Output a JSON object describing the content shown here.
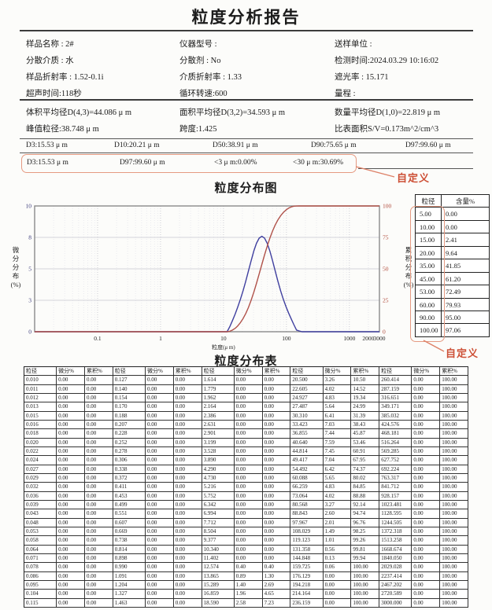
{
  "report": {
    "title": "粒度分析报告",
    "info_rows": [
      [
        "样品名称 : 2#",
        "仪器型号 :",
        "送样单位 :"
      ],
      [
        "分散介质 : 水",
        "分散剂 : No",
        "检测时间:2024.03.29 10:16:02"
      ],
      [
        "样品折射率 : 1.52-0.1i",
        "介质折射率 : 1.33",
        "遮光率 : 15.171"
      ],
      [
        "超声时间:118秒",
        "循环转速:600",
        "量程 :"
      ]
    ],
    "summary_rows": [
      [
        "体积平均径D(4,3)=44.086 μ m",
        "面积平均径D(3,2)=34.593 μ m",
        "数量平均径D(1,0)=22.819 μ m"
      ],
      [
        "峰值粒径:38.748 μ m",
        "跨度:1.425",
        "比表面积S/V=0.173m^2/cm^3"
      ]
    ],
    "d_values": [
      "D3:15.53 μ m",
      "D10:20.21 μ m",
      "D50:38.91 μ m",
      "D90:75.65 μ m",
      "D97:99.60 μ m"
    ],
    "custom_values": [
      "D3:15.53 μ m",
      "D97:99.60 μ m",
      "<3 μ m:0.00%",
      "<30 μ m:30.69%"
    ]
  },
  "annotations": {
    "custom_label": "自定义"
  },
  "colors": {
    "annotation_red": "#cd4f35",
    "box_red": "#e59a82",
    "curve_blue": "#3f3f9f",
    "curve_red": "#b0524a"
  },
  "chart_data": {
    "type": "line",
    "title": "粒度分布图",
    "xlabel": "粒度(μ m)",
    "ylabel_left": "微分分布(%)",
    "ylabel_right": "累积分布(%)",
    "x_scale": "log",
    "xlim": [
      0.01,
      3000
    ],
    "ylim_left": [
      0,
      10
    ],
    "ylim_right": [
      0,
      100
    ],
    "x_ticks": [
      {
        "v": 0.1,
        "label": "0.1"
      },
      {
        "v": 1,
        "label": "1"
      },
      {
        "v": 10,
        "label": "10"
      },
      {
        "v": 100,
        "label": "100"
      },
      {
        "v": 1000,
        "label": "1000"
      },
      {
        "v": 2000,
        "label": "2000"
      },
      {
        "v": 3000,
        "label": "3000"
      }
    ],
    "y_ticks_left": [
      {
        "pos": 0,
        "label": "0"
      },
      {
        "pos": 2.5,
        "label": "3"
      },
      {
        "pos": 5,
        "label": "5"
      },
      {
        "pos": 7.5,
        "label": "8"
      },
      {
        "pos": 10,
        "label": "10"
      }
    ],
    "y_ticks_right": [
      {
        "pos": 0,
        "label": "0"
      },
      {
        "pos": 25,
        "label": "25"
      },
      {
        "pos": 50,
        "label": "50"
      },
      {
        "pos": 75,
        "label": "75"
      },
      {
        "pos": 100,
        "label": "100"
      }
    ],
    "legend_position": "none",
    "grid": true,
    "series": [
      {
        "name": "微分分布",
        "axis": "left",
        "color": "#3f3f9f",
        "points": [
          [
            0.01,
            0
          ],
          [
            1,
            0
          ],
          [
            5,
            0
          ],
          [
            10.34,
            0
          ],
          [
            11.402,
            0
          ],
          [
            12.574,
            0.4
          ],
          [
            13.865,
            0.89
          ],
          [
            15.289,
            1.4
          ],
          [
            16.859,
            1.96
          ],
          [
            18.59,
            2.58
          ],
          [
            20.5,
            3.26
          ],
          [
            22.605,
            4.02
          ],
          [
            24.927,
            4.83
          ],
          [
            27.487,
            5.64
          ],
          [
            30.31,
            6.41
          ],
          [
            33.423,
            7.03
          ],
          [
            36.855,
            7.44
          ],
          [
            40.64,
            7.59
          ],
          [
            44.814,
            7.45
          ],
          [
            49.417,
            7.04
          ],
          [
            54.492,
            6.42
          ],
          [
            60.088,
            5.65
          ],
          [
            66.259,
            4.83
          ],
          [
            73.064,
            4.02
          ],
          [
            80.568,
            3.27
          ],
          [
            88.843,
            2.6
          ],
          [
            97.967,
            2.01
          ],
          [
            108.029,
            1.49
          ],
          [
            119.123,
            1.01
          ],
          [
            131.358,
            0.56
          ],
          [
            144.848,
            0.13
          ],
          [
            159.725,
            0.06
          ],
          [
            176.129,
            0
          ],
          [
            3000,
            0
          ]
        ]
      },
      {
        "name": "累积分布",
        "axis": "right",
        "color": "#b0524a",
        "points": [
          [
            0.01,
            0
          ],
          [
            1,
            0
          ],
          [
            5,
            0
          ],
          [
            10.34,
            0
          ],
          [
            11.402,
            0
          ],
          [
            12.574,
            0.4
          ],
          [
            13.865,
            1.3
          ],
          [
            15.289,
            2.69
          ],
          [
            16.859,
            4.65
          ],
          [
            18.59,
            7.23
          ],
          [
            20.5,
            10.5
          ],
          [
            22.605,
            14.52
          ],
          [
            24.927,
            19.34
          ],
          [
            27.487,
            24.99
          ],
          [
            30.31,
            31.39
          ],
          [
            33.423,
            38.43
          ],
          [
            36.855,
            45.87
          ],
          [
            40.64,
            53.46
          ],
          [
            44.814,
            60.91
          ],
          [
            49.417,
            67.95
          ],
          [
            54.492,
            74.37
          ],
          [
            60.088,
            80.02
          ],
          [
            66.259,
            84.85
          ],
          [
            73.064,
            88.88
          ],
          [
            80.568,
            92.14
          ],
          [
            88.843,
            94.74
          ],
          [
            97.967,
            96.76
          ],
          [
            108.029,
            98.25
          ],
          [
            119.123,
            99.26
          ],
          [
            131.358,
            99.81
          ],
          [
            144.848,
            99.94
          ],
          [
            159.725,
            100
          ],
          [
            176.129,
            100
          ],
          [
            3000,
            100
          ]
        ]
      }
    ]
  },
  "side_table": {
    "headers": [
      "粒径",
      "含量%"
    ],
    "rows": [
      [
        "5.00",
        "0.00"
      ],
      [
        "10.00",
        "0.00"
      ],
      [
        "15.00",
        "2.41"
      ],
      [
        "20.00",
        "9.64"
      ],
      [
        "35.00",
        "41.85"
      ],
      [
        "45.00",
        "61.20"
      ],
      [
        "53.00",
        "72.49"
      ],
      [
        "60.00",
        "79.93"
      ],
      [
        "90.00",
        "95.00"
      ],
      [
        "100.00",
        "97.06"
      ]
    ]
  },
  "dist_table": {
    "title": "粒度分布表",
    "headers": [
      "粒径",
      "微分%",
      "累积%"
    ],
    "groups": [
      {
        "d": [
          "0.010",
          "0.011",
          "0.012",
          "0.013",
          "0.015",
          "0.016",
          "0.018",
          "0.020",
          "0.022",
          "0.024",
          "0.027",
          "0.029",
          "0.032",
          "0.036",
          "0.039",
          "0.043",
          "0.048",
          "0.053",
          "0.058",
          "0.064",
          "0.071",
          "0.078",
          "0.086",
          "0.095",
          "0.104",
          "0.115"
        ],
        "diff": [
          "0.00",
          "0.00",
          "0.00",
          "0.00",
          "0.00",
          "0.00",
          "0.00",
          "0.00",
          "0.00",
          "0.00",
          "0.00",
          "0.00",
          "0.00",
          "0.00",
          "0.00",
          "0.00",
          "0.00",
          "0.00",
          "0.00",
          "0.00",
          "0.00",
          "0.00",
          "0.00",
          "0.00",
          "0.00",
          "0.00"
        ],
        "cum": [
          "0.00",
          "0.00",
          "0.00",
          "0.00",
          "0.00",
          "0.00",
          "0.00",
          "0.00",
          "0.00",
          "0.00",
          "0.00",
          "0.00",
          "0.00",
          "0.00",
          "0.00",
          "0.00",
          "0.00",
          "0.00",
          "0.00",
          "0.00",
          "0.00",
          "0.00",
          "0.00",
          "0.00",
          "0.00",
          "0.00"
        ]
      },
      {
        "d": [
          "0.127",
          "0.140",
          "0.154",
          "0.170",
          "0.188",
          "0.207",
          "0.228",
          "0.252",
          "0.278",
          "0.306",
          "0.338",
          "0.372",
          "0.411",
          "0.453",
          "0.499",
          "0.551",
          "0.607",
          "0.669",
          "0.738",
          "0.814",
          "0.898",
          "0.990",
          "1.091",
          "1.204",
          "1.327",
          "1.463"
        ],
        "diff": [
          "0.00",
          "0.00",
          "0.00",
          "0.00",
          "0.00",
          "0.00",
          "0.00",
          "0.00",
          "0.00",
          "0.00",
          "0.00",
          "0.00",
          "0.00",
          "0.00",
          "0.00",
          "0.00",
          "0.00",
          "0.00",
          "0.00",
          "0.00",
          "0.00",
          "0.00",
          "0.00",
          "0.00",
          "0.00",
          "0.00"
        ],
        "cum": [
          "0.00",
          "0.00",
          "0.00",
          "0.00",
          "0.00",
          "0.00",
          "0.00",
          "0.00",
          "0.00",
          "0.00",
          "0.00",
          "0.00",
          "0.00",
          "0.00",
          "0.00",
          "0.00",
          "0.00",
          "0.00",
          "0.00",
          "0.00",
          "0.00",
          "0.00",
          "0.00",
          "0.00",
          "0.00",
          "0.00"
        ]
      },
      {
        "d": [
          "1.614",
          "1.779",
          "1.962",
          "2.164",
          "2.386",
          "2.631",
          "2.901",
          "3.199",
          "3.528",
          "3.890",
          "4.290",
          "4.730",
          "5.216",
          "5.752",
          "6.342",
          "6.994",
          "7.712",
          "8.504",
          "9.377",
          "10.340",
          "11.402",
          "12.574",
          "13.865",
          "15.289",
          "16.859",
          "18.590"
        ],
        "diff": [
          "0.00",
          "0.00",
          "0.00",
          "0.00",
          "0.00",
          "0.00",
          "0.00",
          "0.00",
          "0.00",
          "0.00",
          "0.00",
          "0.00",
          "0.00",
          "0.00",
          "0.00",
          "0.00",
          "0.00",
          "0.00",
          "0.00",
          "0.00",
          "0.00",
          "0.40",
          "0.89",
          "1.40",
          "1.96",
          "2.58"
        ],
        "cum": [
          "0.00",
          "0.00",
          "0.00",
          "0.00",
          "0.00",
          "0.00",
          "0.00",
          "0.00",
          "0.00",
          "0.00",
          "0.00",
          "0.00",
          "0.00",
          "0.00",
          "0.00",
          "0.00",
          "0.00",
          "0.00",
          "0.00",
          "0.00",
          "0.00",
          "0.40",
          "1.30",
          "2.69",
          "4.65",
          "7.23"
        ]
      },
      {
        "d": [
          "20.500",
          "22.605",
          "24.927",
          "27.487",
          "30.310",
          "33.423",
          "36.855",
          "40.640",
          "44.814",
          "49.417",
          "54.492",
          "60.088",
          "66.259",
          "73.064",
          "80.568",
          "88.843",
          "97.967",
          "108.029",
          "119.123",
          "131.358",
          "144.848",
          "159.725",
          "176.129",
          "194.218",
          "214.164",
          "236.159"
        ],
        "diff": [
          "3.26",
          "4.02",
          "4.83",
          "5.64",
          "6.41",
          "7.03",
          "7.44",
          "7.59",
          "7.45",
          "7.04",
          "6.42",
          "5.65",
          "4.83",
          "4.02",
          "3.27",
          "2.60",
          "2.01",
          "1.49",
          "1.01",
          "0.56",
          "0.13",
          "0.06",
          "0.00",
          "0.00",
          "0.00",
          "0.00"
        ],
        "cum": [
          "10.50",
          "14.52",
          "19.34",
          "24.99",
          "31.39",
          "38.43",
          "45.87",
          "53.46",
          "60.91",
          "67.95",
          "74.37",
          "80.02",
          "84.85",
          "88.88",
          "92.14",
          "94.74",
          "96.76",
          "98.25",
          "99.26",
          "99.81",
          "99.94",
          "100.00",
          "100.00",
          "100.00",
          "100.00",
          "100.00"
        ]
      },
      {
        "d": [
          "260.414",
          "287.159",
          "316.651",
          "349.171",
          "385.032",
          "424.576",
          "468.181",
          "516.264",
          "569.285",
          "627.752",
          "692.224",
          "763.317",
          "841.712",
          "928.157",
          "1023.481",
          "1128.595",
          "1244.505",
          "1372.318",
          "1513.258",
          "1668.674",
          "1840.050",
          "2029.028",
          "2237.414",
          "2467.202",
          "2720.589",
          "3000.000"
        ],
        "diff": [
          "0.00",
          "0.00",
          "0.00",
          "0.00",
          "0.00",
          "0.00",
          "0.00",
          "0.00",
          "0.00",
          "0.00",
          "0.00",
          "0.00",
          "0.00",
          "0.00",
          "0.00",
          "0.00",
          "0.00",
          "0.00",
          "0.00",
          "0.00",
          "0.00",
          "0.00",
          "0.00",
          "0.00",
          "0.00",
          "0.00"
        ],
        "cum": [
          "100.00",
          "100.00",
          "100.00",
          "100.00",
          "100.00",
          "100.00",
          "100.00",
          "100.00",
          "100.00",
          "100.00",
          "100.00",
          "100.00",
          "100.00",
          "100.00",
          "100.00",
          "100.00",
          "100.00",
          "100.00",
          "100.00",
          "100.00",
          "100.00",
          "100.00",
          "100.00",
          "100.00",
          "100.00",
          "100.00"
        ]
      }
    ]
  }
}
